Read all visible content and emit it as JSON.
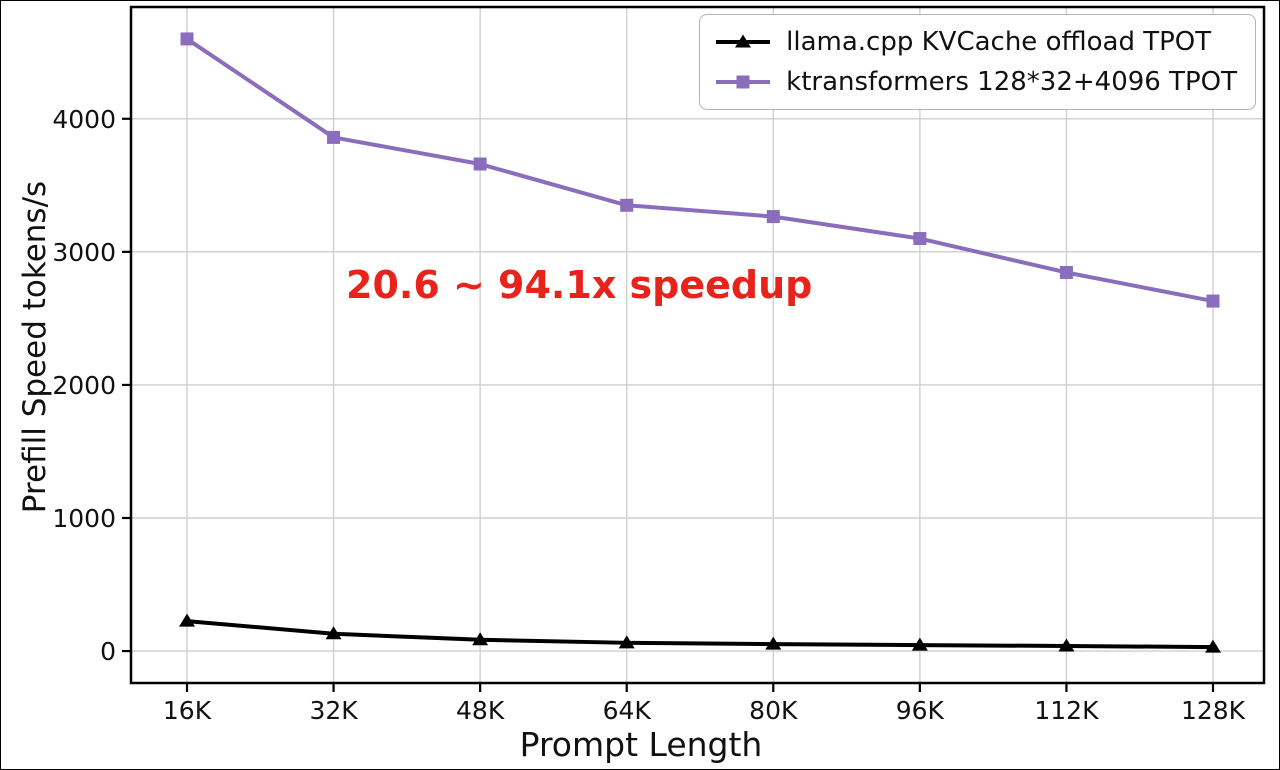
{
  "chart_data": {
    "type": "line",
    "title": "",
    "xlabel": "Prompt Length",
    "ylabel": "Prefill Speed tokens/s",
    "categories": [
      "16K",
      "32K",
      "48K",
      "64K",
      "80K",
      "96K",
      "112K",
      "128K"
    ],
    "series": [
      {
        "name": "llama.cpp KVCache offload TPOT",
        "color": "#000000",
        "marker": "triangle",
        "values": [
          225,
          130,
          85,
          62,
          52,
          45,
          38,
          30
        ]
      },
      {
        "name": "ktransformers 128*32+4096 TPOT",
        "color": "#8b6dbd",
        "marker": "square",
        "values": [
          4600,
          3860,
          3660,
          3350,
          3265,
          3100,
          2845,
          2630
        ]
      }
    ],
    "yticks": [
      0,
      1000,
      2000,
      3000,
      4000
    ],
    "ylim": [
      -240,
      4840
    ],
    "grid": true,
    "legend_position": "top-right",
    "annotation": {
      "text": "20.6 ~ 94.1x speedup",
      "color": "#e8231c"
    }
  }
}
